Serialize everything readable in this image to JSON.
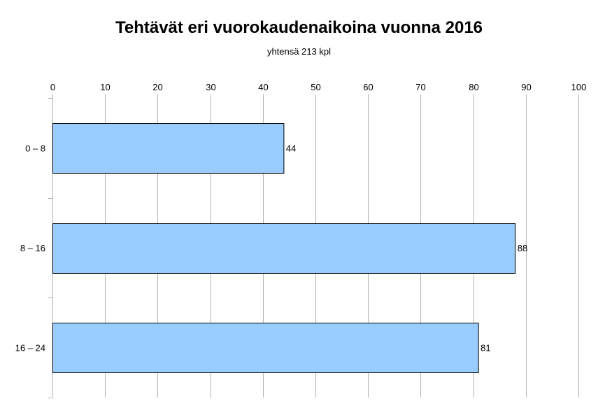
{
  "chart_data": {
    "type": "bar",
    "orientation": "horizontal",
    "title": "Tehtävät eri vuorokaudenaikoina vuonna 2016",
    "subtitle": "yhtensä 213 kpl",
    "categories": [
      "0 – 8",
      "8 – 16",
      "16 – 24"
    ],
    "values": [
      44,
      88,
      81
    ],
    "data_labels": [
      "44",
      "88",
      "81"
    ],
    "xlim": [
      0,
      100
    ],
    "x_ticks": [
      0,
      10,
      20,
      30,
      40,
      50,
      60,
      70,
      80,
      90,
      100
    ],
    "x_axis_position": "top",
    "grid": true,
    "legend": "none",
    "bar_color": "#99ccff",
    "bar_border_color": "#000000",
    "grid_color": "#b3b3b3"
  }
}
